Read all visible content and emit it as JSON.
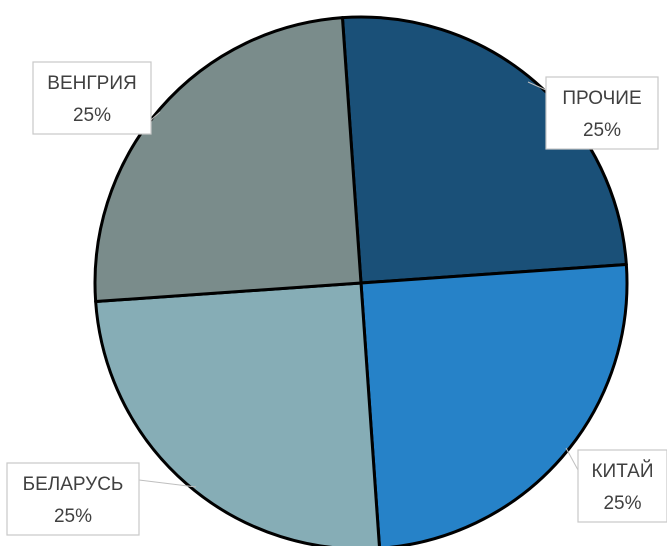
{
  "chart_data": {
    "type": "pie",
    "title": "",
    "slices": [
      {
        "label": "ПРОЧИЕ",
        "value": 25,
        "pct_label": "25%",
        "color": "#1a5078"
      },
      {
        "label": "КИТАЙ",
        "value": 25,
        "pct_label": "25%",
        "color": "#2682c8"
      },
      {
        "label": "БЕЛАРУСЬ",
        "value": 25,
        "pct_label": "25%",
        "color": "#86adb6"
      },
      {
        "label": "ВЕНГРИЯ",
        "value": 25,
        "pct_label": "25%",
        "color": "#7a8c8b"
      }
    ],
    "start_angle_deg": -4,
    "direction": "clockwise",
    "legend": "none",
    "slice_border_color": "#000000"
  }
}
